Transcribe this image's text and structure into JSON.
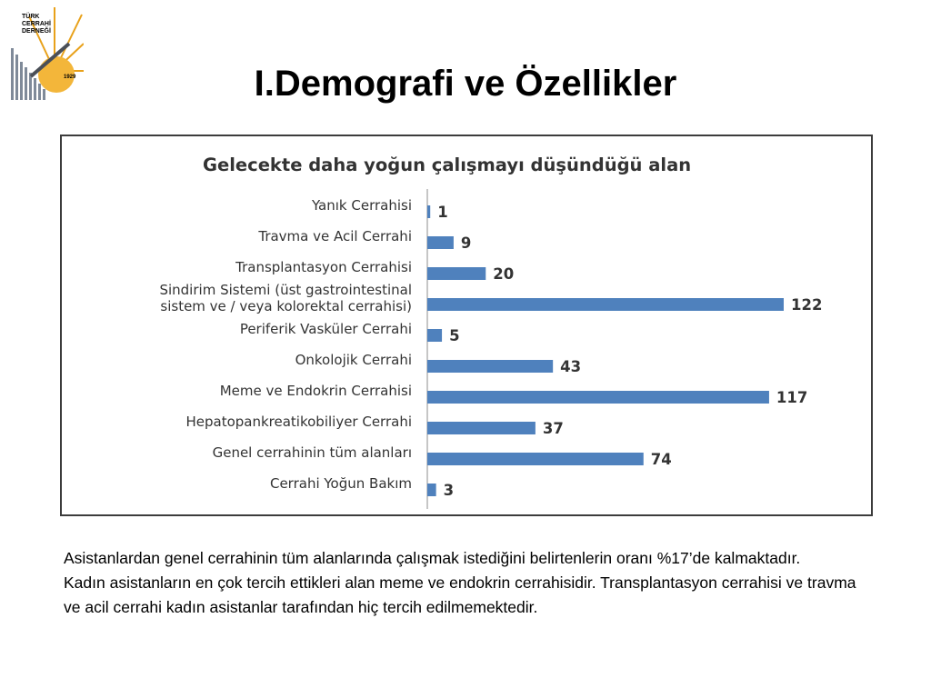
{
  "slide": {
    "title": "I.Demografi ve Özellikler",
    "logo_text": [
      "TÜRK",
      "CERRAHİ",
      "DERNEĞİ"
    ],
    "logo_year": "1929"
  },
  "chart_data": {
    "type": "bar",
    "orientation": "horizontal",
    "title": "Gelecekte daha yoğun çalışmayı düşündüğü alan",
    "categories": [
      "Yanık Cerrahisi",
      "Travma ve Acil Cerrahi",
      "Transplantasyon Cerrahisi",
      "Sindirim Sistemi (üst gastrointestinal sistem ve / veya kolorektal cerrahisi)",
      "Periferik Vasküler Cerrahi",
      "Onkolojik Cerrahi",
      "Meme ve Endokrin Cerrahisi",
      "Hepatopankreatikobiliyer Cerrahi",
      "Genel cerrahinin tüm alanları",
      "Cerrahi Yoğun Bakım"
    ],
    "category_label_lines": [
      [
        "Yanık Cerrahisi"
      ],
      [
        "Travma ve Acil Cerrahi"
      ],
      [
        "Transplantasyon Cerrahisi"
      ],
      [
        "Sindirim Sistemi (üst gastrointestinal",
        "sistem ve / veya kolorektal cerrahisi)"
      ],
      [
        "Periferik Vasküler Cerrahi"
      ],
      [
        "Onkolojik Cerrahi"
      ],
      [
        "Meme ve Endokrin Cerrahisi"
      ],
      [
        "Hepatopankreatikobiliyer Cerrahi"
      ],
      [
        "Genel cerrahinin tüm alanları"
      ],
      [
        "Cerrahi Yoğun Bakım"
      ]
    ],
    "values": [
      1,
      9,
      20,
      122,
      5,
      43,
      117,
      37,
      74,
      3
    ],
    "data_labels": [
      "1",
      "9",
      "20",
      "122",
      "5",
      "43",
      "117",
      "37",
      "74",
      "3"
    ],
    "xlim": [
      0,
      122
    ],
    "bar_color": "#4f81bd",
    "grid": false,
    "legend": "none"
  },
  "notes": {
    "paragraph1": "Asistanlardan genel cerrahinin tüm alanlarında çalışmak istediğini belirtenlerin oranı %17’de kalmaktadır.",
    "paragraph2": "Kadın asistanların en çok tercih ettikleri alan meme ve endokrin cerrahisidir. Transplantasyon cerrahisi ve travma ve acil cerrahi kadın asistanlar tarafından hiç tercih edilmemektedir."
  }
}
